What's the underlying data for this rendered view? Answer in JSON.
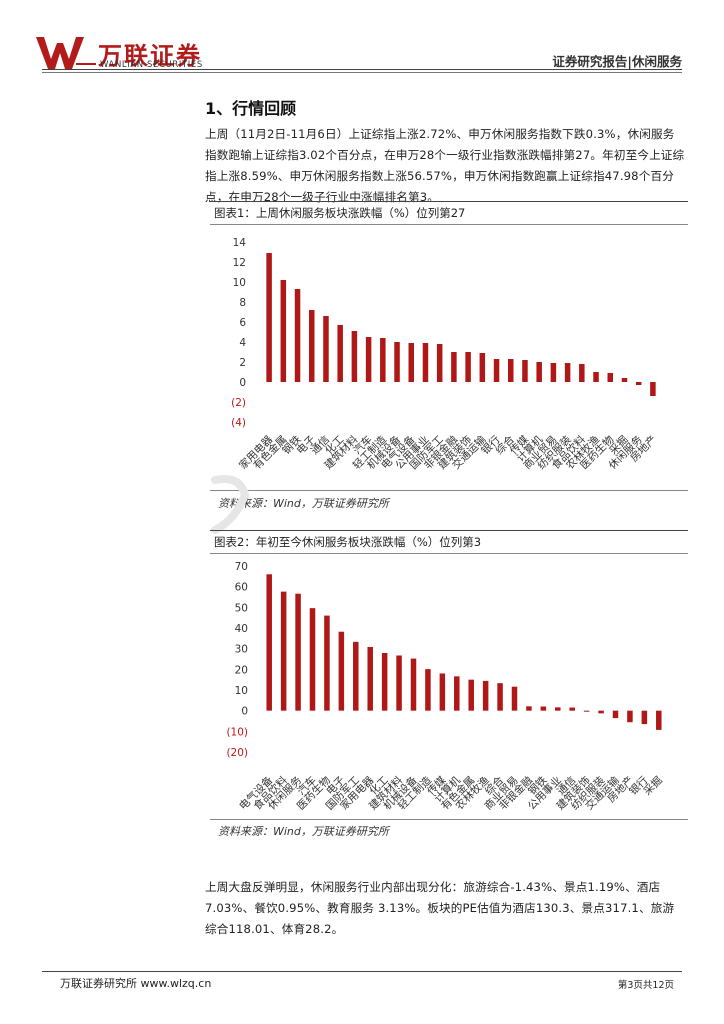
{
  "header": {
    "logo_cn": "万联证券",
    "logo_en": "WANLIAN SECURITIES",
    "category": "证券研究报告|休闲服务"
  },
  "section": {
    "title": "1、行情回顾"
  },
  "paragraph1": "上周（11月2日-11月6日）上证综指上涨2.72%、申万休闲服务指数下跌0.3%，休闲服务指数跑输上证综指3.02个百分点，在申万28个一级行业指数涨跌幅排第27。年初至今上证综指上涨8.59%、申万休闲服务指数上涨56.57%，申万休闲指数跑赢上证综指47.98个百分点，在申万28个一级子行业中涨幅排名第3。",
  "figure1": {
    "title": "图表1：上周休闲服务板块涨跌幅（%）位列第27",
    "source": "资料来源：Wind，万联证券研究所"
  },
  "figure2": {
    "title": "图表2：年初至今休闲服务板块涨跌幅（%）位列第3",
    "source": "资料来源：Wind，万联证券研究所"
  },
  "chart_data": [
    {
      "type": "bar",
      "title": "图表1：上周休闲服务板块涨跌幅（%）位列第27",
      "ylim": [
        -4,
        14
      ],
      "yticks": [
        "14",
        "12",
        "10",
        "8",
        "6",
        "4",
        "2",
        "0",
        "(2)",
        "(4)"
      ],
      "grid": false,
      "bar_color": "#b01818",
      "categories": [
        "家用电器",
        "有色金属",
        "钢铁",
        "电子",
        "通信",
        "化工",
        "建筑材料",
        "汽车",
        "轻工制造",
        "机械设备",
        "电气设备",
        "公用事业",
        "国防军工",
        "非银金融",
        "建筑装饰",
        "交通运输",
        "银行",
        "综合",
        "传媒",
        "计算机",
        "商业贸易",
        "纺织服装",
        "食品饮料",
        "农林牧渔",
        "医药生物",
        "采掘",
        "休闲服务",
        "房地产"
      ],
      "values": [
        12.9,
        10.2,
        9.3,
        7.2,
        6.6,
        5.7,
        5.1,
        4.5,
        4.4,
        4.0,
        3.9,
        3.9,
        3.8,
        3.0,
        3.0,
        2.9,
        2.3,
        2.3,
        2.2,
        2.0,
        1.9,
        1.9,
        1.8,
        1.0,
        0.9,
        0.4,
        -0.3,
        -1.4
      ]
    },
    {
      "type": "bar",
      "title": "图表2：年初至今休闲服务板块涨跌幅（%）位列第3",
      "ylim": [
        -20,
        70
      ],
      "yticks": [
        "70",
        "60",
        "50",
        "40",
        "30",
        "20",
        "10",
        "0",
        "(10)",
        "(20)"
      ],
      "grid": false,
      "bar_color": "#b01818",
      "categories": [
        "电气设备",
        "食品饮料",
        "休闲服务",
        "汽车",
        "医药生物",
        "电子",
        "国防军工",
        "家用电器",
        "化工",
        "建筑材料",
        "机械设备",
        "轻工制造",
        "传媒",
        "计算机",
        "有色金属",
        "农林牧渔",
        "综合",
        "商业贸易",
        "非银金融",
        "钢铁",
        "公用事业",
        "通信",
        "建筑装饰",
        "纺织服装",
        "交通运输",
        "房地产",
        "银行",
        "采掘"
      ],
      "values": [
        66.0,
        57.6,
        56.6,
        49.6,
        46.0,
        38.2,
        33.3,
        30.8,
        27.9,
        26.7,
        25.2,
        20.1,
        18.0,
        16.6,
        15.0,
        14.4,
        13.3,
        11.6,
        2.1,
        2.0,
        1.6,
        1.5,
        -0.5,
        -1.3,
        -3.6,
        -5.6,
        -6.5,
        -9.3
      ]
    }
  ],
  "footer": {
    "left": "万联证券研究所 www.wlzq.cn",
    "right": "第3页共12页"
  }
}
